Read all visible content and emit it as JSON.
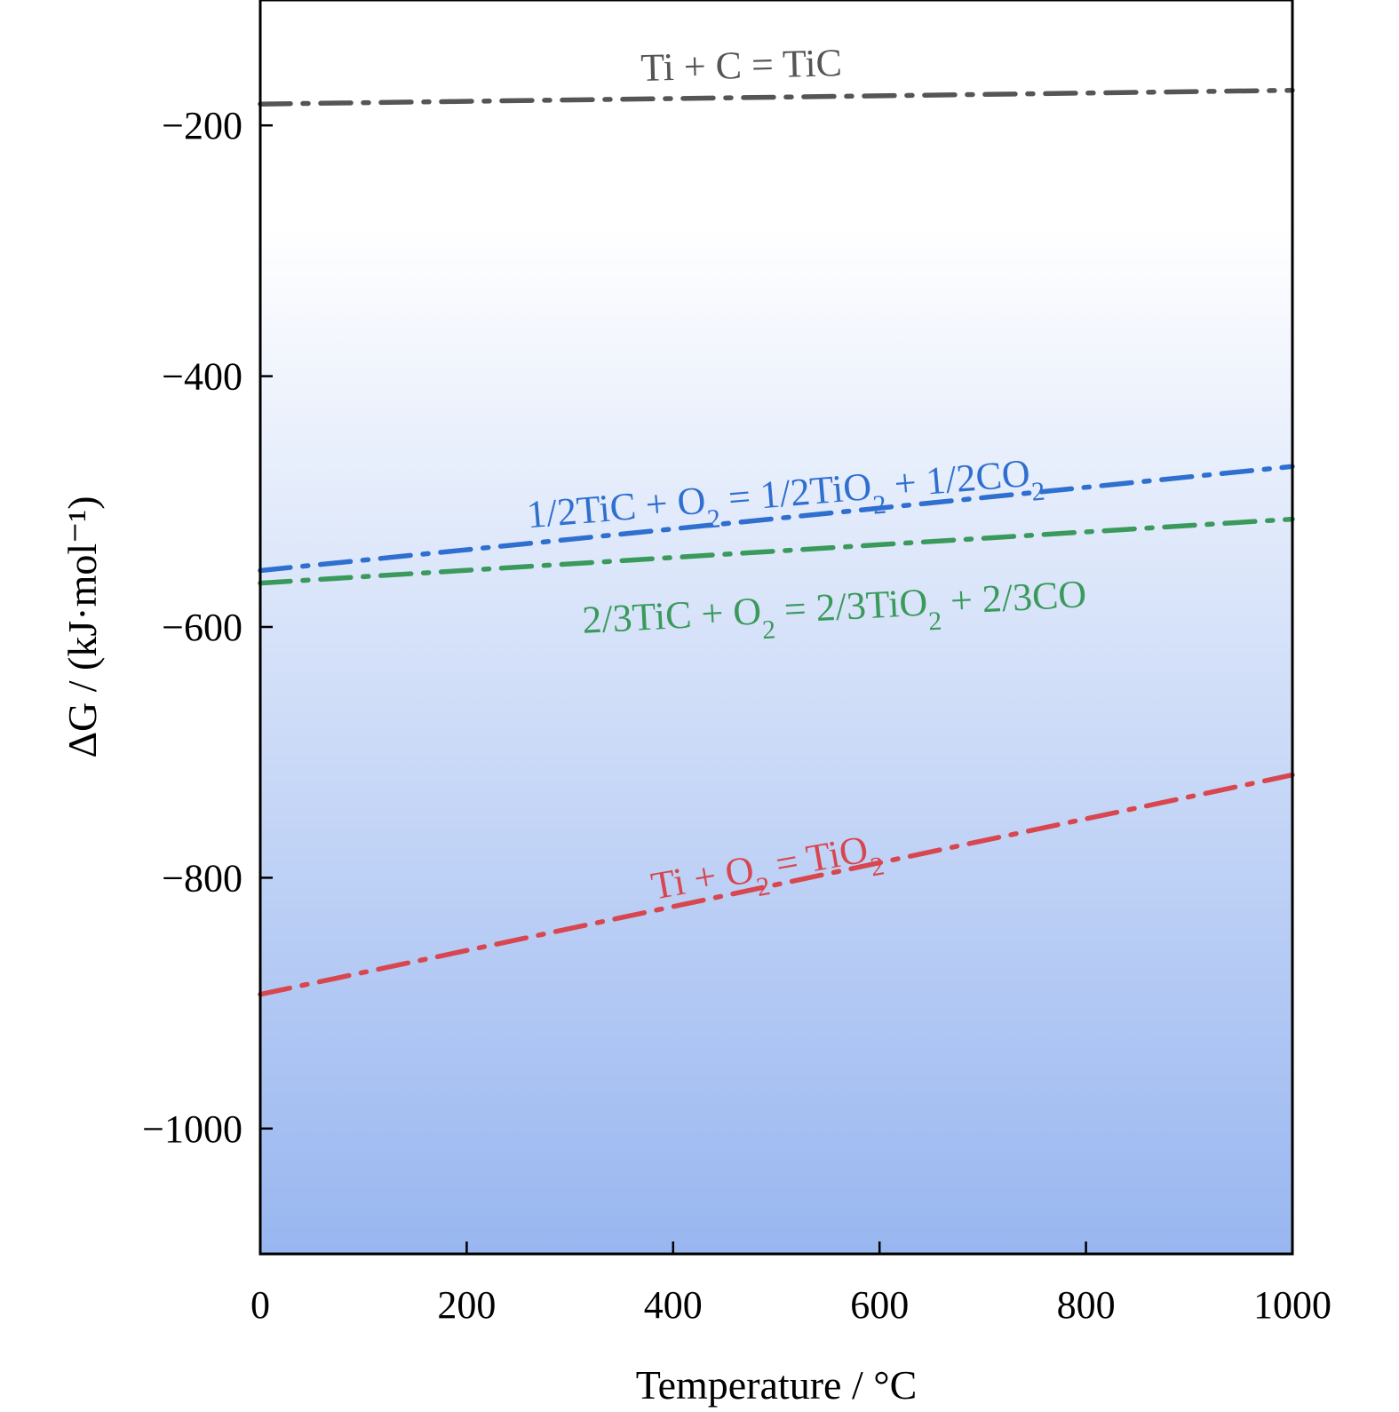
{
  "chart_data": {
    "type": "line",
    "title": "",
    "xlabel": "Temperature / °C",
    "ylabel": "ΔG / (kJ·mol⁻¹)",
    "xlim": [
      0,
      1000
    ],
    "ylim": [
      -1100,
      -100
    ],
    "xticks": [
      0,
      200,
      400,
      600,
      800,
      1000
    ],
    "xtick_labels": [
      "0",
      "200",
      "400",
      "600",
      "800",
      "1000"
    ],
    "yticks": [
      -200,
      -400,
      -600,
      -800,
      -1000
    ],
    "ytick_labels": [
      "−200",
      "−400",
      "−600",
      "−800",
      "−1000"
    ],
    "grid": false,
    "legend": "inline labels",
    "background": "gradient white to light blue",
    "series": [
      {
        "name": "Ti + C = TiC",
        "x": [
          0,
          1000
        ],
        "y": [
          -183,
          -172
        ],
        "color": "#555555"
      },
      {
        "name": "1/2TiC + O2 = 1/2TiO2 + 1/2CO2",
        "x": [
          0,
          1000
        ],
        "y": [
          -555,
          -472
        ],
        "color": "#2f6fd0"
      },
      {
        "name": "2/3TiC + O2 = 2/3TiO2 + 2/3CO",
        "x": [
          0,
          1000
        ],
        "y": [
          -565,
          -514
        ],
        "color": "#3a9a5c"
      },
      {
        "name": "Ti + O2 = TiO2",
        "x": [
          0,
          1000
        ],
        "y": [
          -893,
          -718
        ],
        "color": "#d8464f"
      }
    ]
  }
}
